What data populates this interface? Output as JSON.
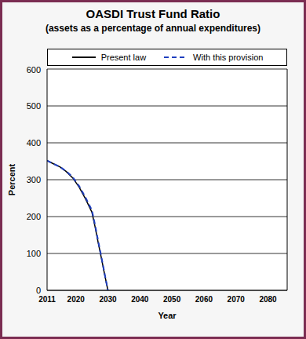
{
  "chart_data": {
    "type": "line",
    "title": "OASDI Trust Fund Ratio",
    "subtitle": "(assets as a percentage of annual expenditures)",
    "x_label": "Year",
    "y_label": "Percent",
    "x": [
      2011,
      2013,
      2015,
      2017,
      2019,
      2021,
      2023,
      2025,
      2026,
      2027,
      2028,
      2029,
      2030
    ],
    "series": [
      {
        "name": "Present law",
        "color": "#000000",
        "line_style": "solid",
        "values": [
          352,
          343,
          335,
          322,
          305,
          280,
          248,
          212,
          172,
          128,
          86,
          42,
          0
        ]
      },
      {
        "name": "With this provision",
        "color": "#1f3fbf",
        "line_style": "dashed",
        "values": [
          352,
          343,
          335,
          323,
          307,
          283,
          252,
          217,
          177,
          132,
          89,
          44,
          0
        ]
      }
    ],
    "xlim": [
      2011,
      2086
    ],
    "xticks": [
      2011,
      2020,
      2030,
      2040,
      2050,
      2060,
      2070,
      2080
    ],
    "ylim": [
      0,
      600
    ],
    "yticks": [
      0,
      100,
      200,
      300,
      400,
      500,
      600
    ],
    "grid": true,
    "legend": "top"
  }
}
